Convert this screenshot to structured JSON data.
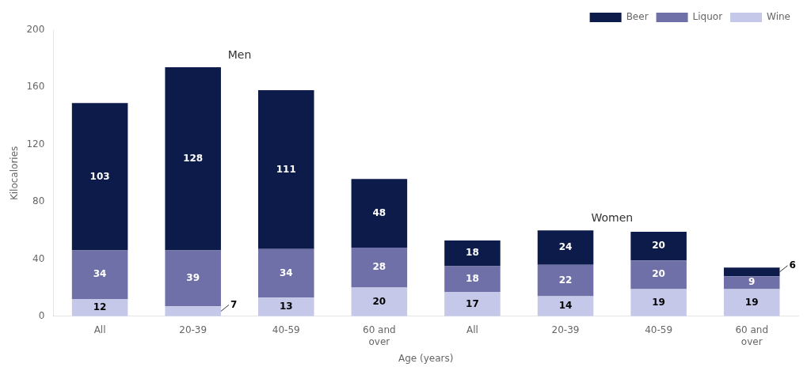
{
  "chart_data": {
    "type": "bar",
    "stacked": true,
    "categories": [
      "All",
      "20-39",
      "40-59",
      "60 and\nover",
      "All",
      "20-39",
      "40-59",
      "60 and\nover"
    ],
    "series": [
      {
        "name": "Wine",
        "color": "#c5c8e8",
        "values": [
          12,
          7,
          13,
          20,
          17,
          14,
          19,
          19
        ]
      },
      {
        "name": "Liquor",
        "color": "#7070a8",
        "values": [
          34,
          39,
          34,
          28,
          18,
          22,
          20,
          9
        ]
      },
      {
        "name": "Beer",
        "color": "#0d1b4b",
        "values": [
          103,
          128,
          111,
          48,
          18,
          24,
          20,
          6
        ]
      }
    ],
    "xlabel": "Age (years)",
    "ylabel": "Kilocalories",
    "ylim": [
      0,
      200
    ],
    "yticks": [
      0,
      40,
      80,
      120,
      160,
      200
    ],
    "grid": false,
    "legend": "upper right",
    "data_labels": true,
    "annotations": [
      "Men",
      "Women"
    ]
  }
}
